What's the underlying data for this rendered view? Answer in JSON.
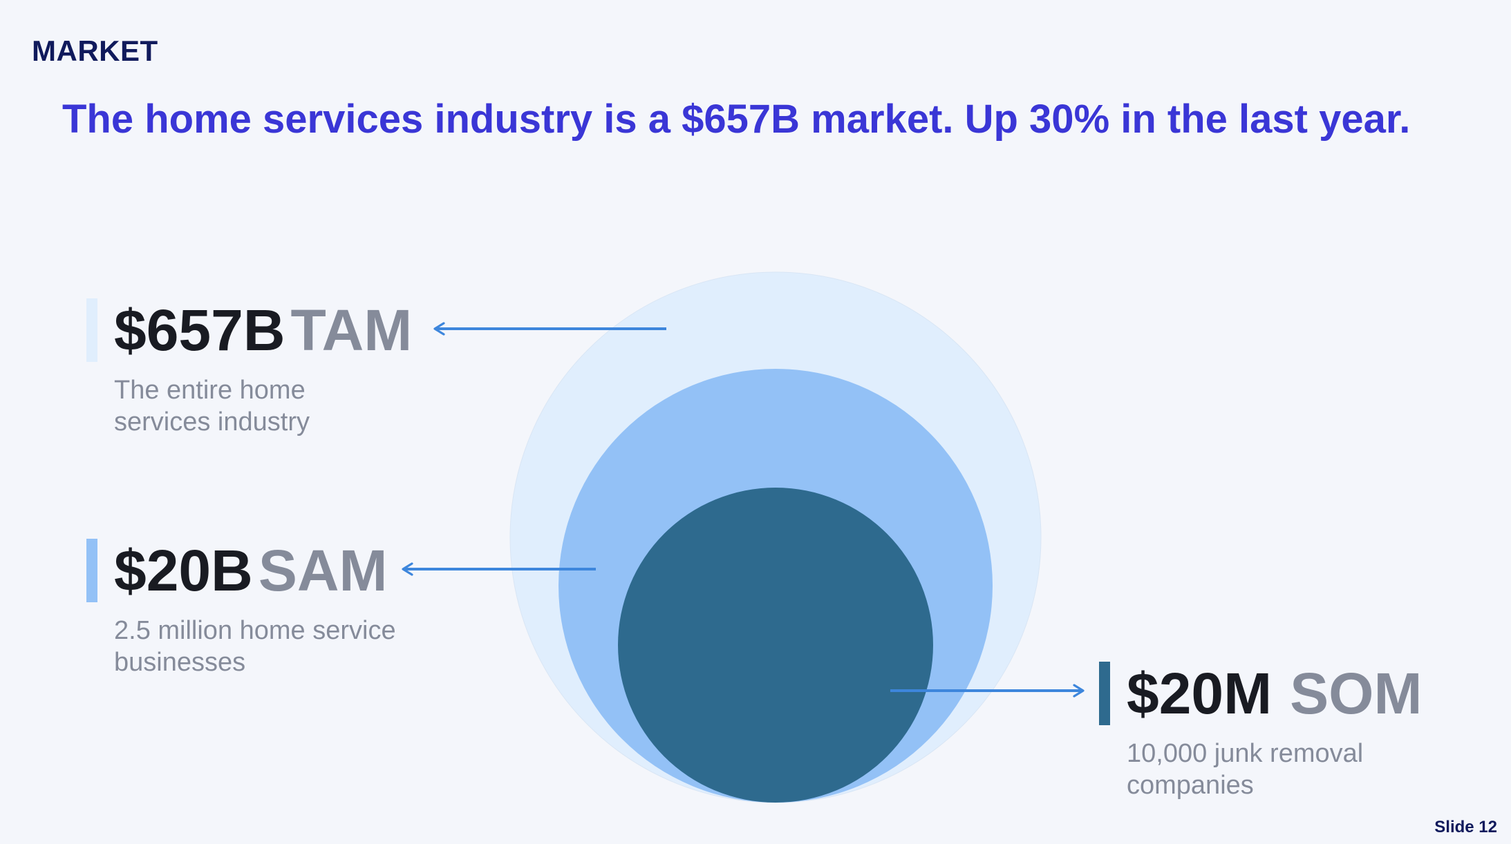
{
  "section_label": "MARKET",
  "headline": "The home services industry is a $657B market. Up 30% in the last year.",
  "colors": {
    "background": "#f4f6fb",
    "headline": "#3a36d6",
    "tam": "#e0eefd",
    "sam": "#93c1f6",
    "som": "#2e6a8e",
    "arrow": "#3d86dc"
  },
  "markets": {
    "tam": {
      "value": "$657B",
      "label": "TAM",
      "description": "The entire home services industry"
    },
    "sam": {
      "value": "$20B",
      "label": "SAM",
      "description": "2.5 million home service businesses"
    },
    "som": {
      "value": "$20M",
      "label": "SOM",
      "description": "10,000 junk removal companies"
    }
  },
  "slide_number": "Slide 12"
}
